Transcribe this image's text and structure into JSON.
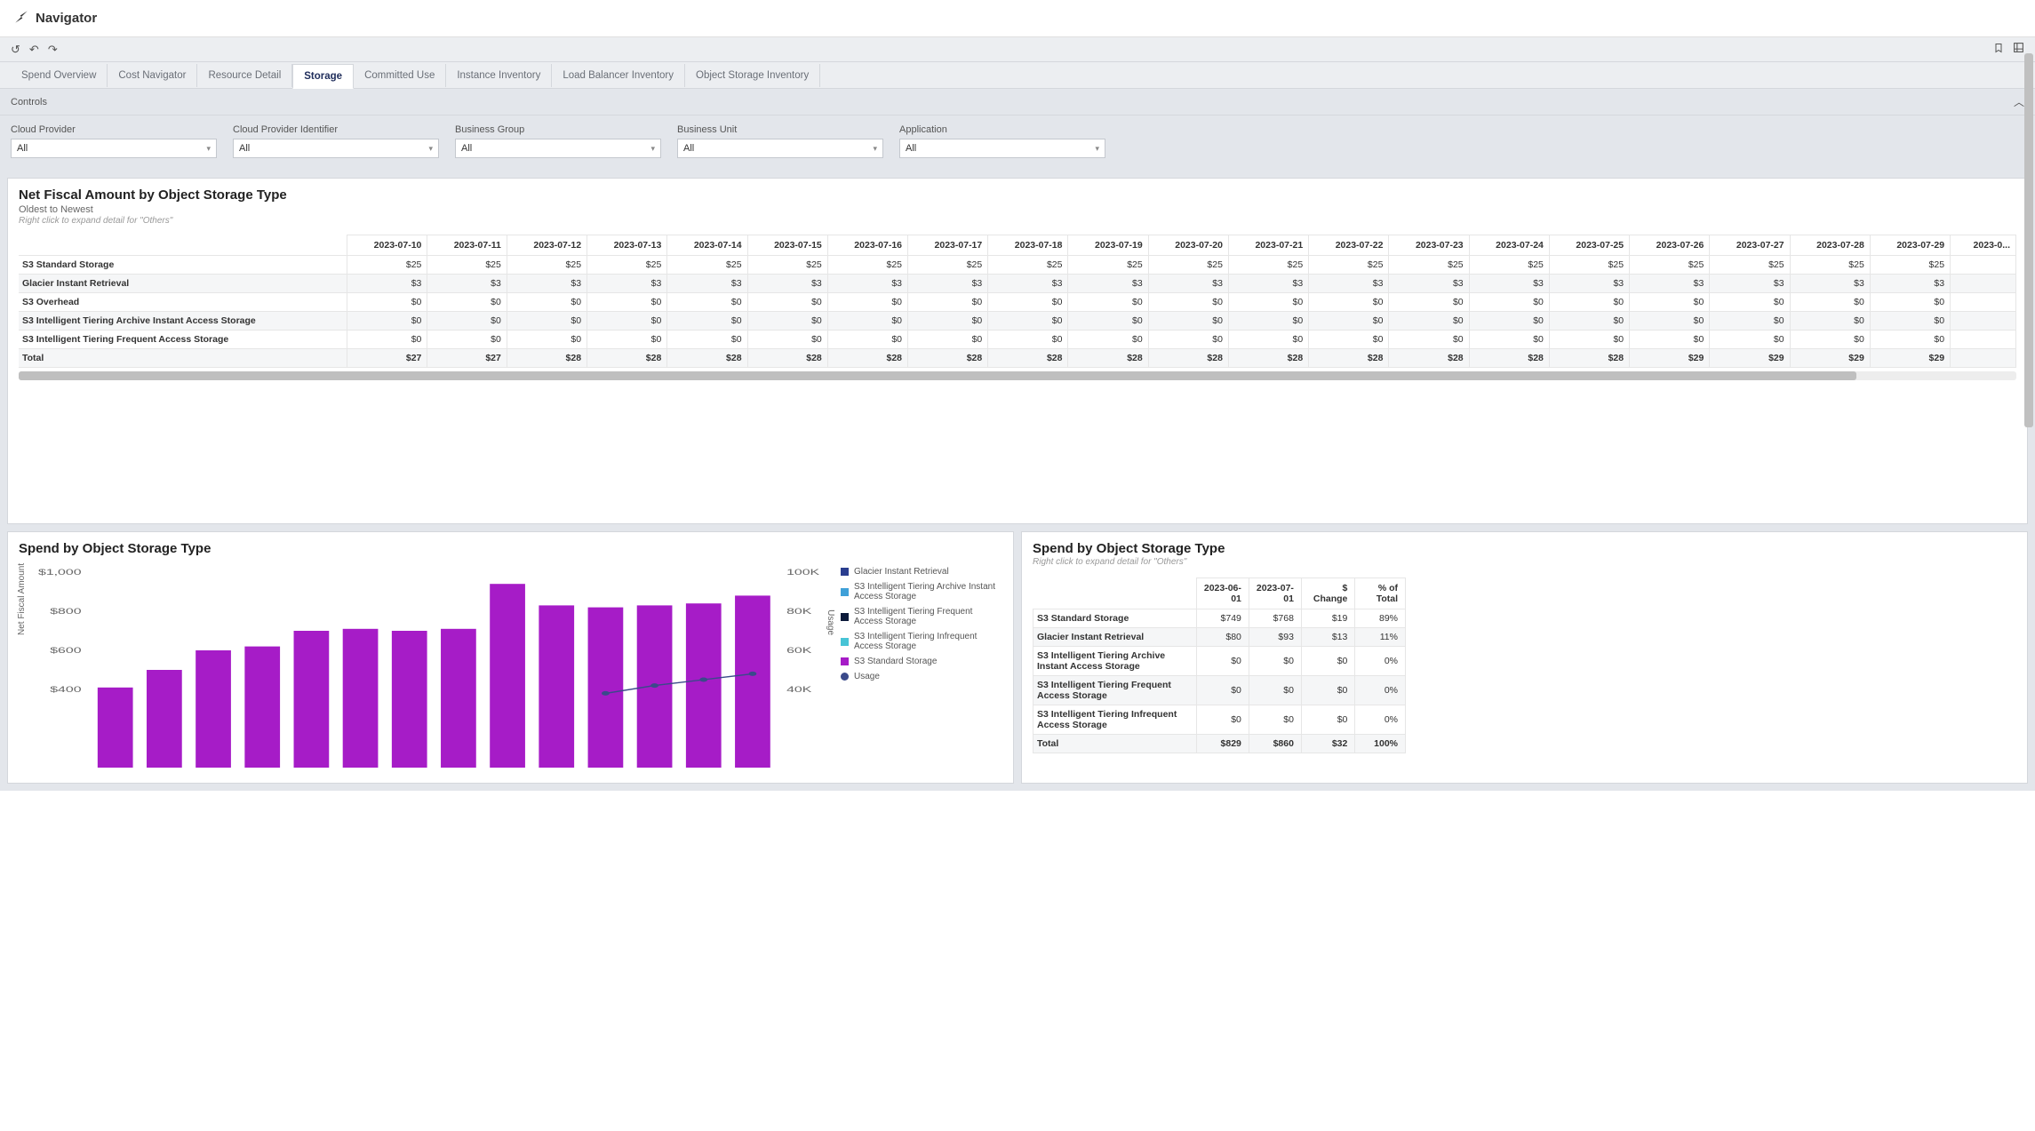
{
  "header": {
    "title": "Navigator"
  },
  "toolbar": {
    "icons_left": [
      "undo",
      "redo-left",
      "redo-right"
    ],
    "icons_right": [
      "bookmark",
      "export"
    ]
  },
  "tabs": {
    "items": [
      {
        "label": "Spend Overview",
        "active": false
      },
      {
        "label": "Cost Navigator",
        "active": false
      },
      {
        "label": "Resource Detail",
        "active": false
      },
      {
        "label": "Storage",
        "active": true
      },
      {
        "label": "Committed Use",
        "active": false
      },
      {
        "label": "Instance Inventory",
        "active": false
      },
      {
        "label": "Load Balancer Inventory",
        "active": false
      },
      {
        "label": "Object Storage Inventory",
        "active": false
      }
    ]
  },
  "controls": {
    "label": "Controls"
  },
  "filters": [
    {
      "label": "Cloud Provider",
      "value": "All"
    },
    {
      "label": "Cloud Provider Identifier",
      "value": "All"
    },
    {
      "label": "Business Group",
      "value": "All"
    },
    {
      "label": "Business Unit",
      "value": "All"
    },
    {
      "label": "Application",
      "value": "All"
    }
  ],
  "panel1": {
    "title": "Net Fiscal Amount by Object Storage Type",
    "subtitle": "Oldest to Newest",
    "hint": "Right click to expand detail for \"Others\"",
    "columns": [
      "2023-07-10",
      "2023-07-11",
      "2023-07-12",
      "2023-07-13",
      "2023-07-14",
      "2023-07-15",
      "2023-07-16",
      "2023-07-17",
      "2023-07-18",
      "2023-07-19",
      "2023-07-20",
      "2023-07-21",
      "2023-07-22",
      "2023-07-23",
      "2023-07-24",
      "2023-07-25",
      "2023-07-26",
      "2023-07-27",
      "2023-07-28",
      "2023-07-29",
      "2023-0..."
    ],
    "rows": [
      {
        "label": "S3 Standard Storage",
        "values": [
          "$25",
          "$25",
          "$25",
          "$25",
          "$25",
          "$25",
          "$25",
          "$25",
          "$25",
          "$25",
          "$25",
          "$25",
          "$25",
          "$25",
          "$25",
          "$25",
          "$25",
          "$25",
          "$25",
          "$25",
          ""
        ]
      },
      {
        "label": "Glacier Instant Retrieval",
        "values": [
          "$3",
          "$3",
          "$3",
          "$3",
          "$3",
          "$3",
          "$3",
          "$3",
          "$3",
          "$3",
          "$3",
          "$3",
          "$3",
          "$3",
          "$3",
          "$3",
          "$3",
          "$3",
          "$3",
          "$3",
          ""
        ]
      },
      {
        "label": "S3 Overhead",
        "values": [
          "$0",
          "$0",
          "$0",
          "$0",
          "$0",
          "$0",
          "$0",
          "$0",
          "$0",
          "$0",
          "$0",
          "$0",
          "$0",
          "$0",
          "$0",
          "$0",
          "$0",
          "$0",
          "$0",
          "$0",
          ""
        ]
      },
      {
        "label": "S3 Intelligent Tiering Archive Instant Access Storage",
        "values": [
          "$0",
          "$0",
          "$0",
          "$0",
          "$0",
          "$0",
          "$0",
          "$0",
          "$0",
          "$0",
          "$0",
          "$0",
          "$0",
          "$0",
          "$0",
          "$0",
          "$0",
          "$0",
          "$0",
          "$0",
          ""
        ]
      },
      {
        "label": "S3 Intelligent Tiering Frequent Access Storage",
        "values": [
          "$0",
          "$0",
          "$0",
          "$0",
          "$0",
          "$0",
          "$0",
          "$0",
          "$0",
          "$0",
          "$0",
          "$0",
          "$0",
          "$0",
          "$0",
          "$0",
          "$0",
          "$0",
          "$0",
          "$0",
          ""
        ]
      },
      {
        "label": "Total",
        "values": [
          "$27",
          "$27",
          "$28",
          "$28",
          "$28",
          "$28",
          "$28",
          "$28",
          "$28",
          "$28",
          "$28",
          "$28",
          "$28",
          "$28",
          "$28",
          "$28",
          "$29",
          "$29",
          "$29",
          "$29",
          ""
        ],
        "total": true
      }
    ]
  },
  "panel2": {
    "title": "Spend by Object Storage Type",
    "chart": {
      "type": "bar+line",
      "y1_label": "Net Fiscal Amount",
      "y2_label": "Usage",
      "y1_max": 1000,
      "y1_ticks": [
        "$1,000",
        "$800",
        "$600",
        "$400"
      ],
      "y2_max": 100000,
      "y2_ticks": [
        "100K",
        "80K",
        "60K",
        "40K"
      ],
      "bar_color": "#a61cc7",
      "bar_values": [
        410,
        500,
        600,
        620,
        700,
        710,
        700,
        710,
        940,
        830,
        820,
        830,
        840,
        880
      ],
      "line_color": "#3a4a8a",
      "line_values": [
        null,
        null,
        null,
        null,
        null,
        null,
        null,
        null,
        null,
        null,
        38,
        42,
        45,
        48
      ],
      "legend": [
        {
          "label": "Glacier Instant Retrieval",
          "color": "#2a3e8f",
          "shape": "square"
        },
        {
          "label": "S3 Intelligent Tiering Archive Instant Access Storage",
          "color": "#3fa0d8",
          "shape": "square"
        },
        {
          "label": "S3 Intelligent Tiering Frequent Access Storage",
          "color": "#0b1a3a",
          "shape": "square"
        },
        {
          "label": "S3 Intelligent Tiering Infrequent Access Storage",
          "color": "#47c4d6",
          "shape": "square"
        },
        {
          "label": "S3 Standard Storage",
          "color": "#a61cc7",
          "shape": "square"
        },
        {
          "label": "Usage",
          "color": "#3a4a8a",
          "shape": "circle"
        }
      ]
    }
  },
  "panel3": {
    "title": "Spend by Object Storage Type",
    "hint": "Right click to expand detail for \"Others\"",
    "columns": [
      "2023-06-01",
      "2023-07-01",
      "$ Change",
      "% of Total"
    ],
    "rows": [
      {
        "label": "S3 Standard Storage",
        "values": [
          "$749",
          "$768",
          "$19",
          "89%"
        ]
      },
      {
        "label": "Glacier Instant Retrieval",
        "values": [
          "$80",
          "$93",
          "$13",
          "11%"
        ]
      },
      {
        "label": "S3 Intelligent Tiering Archive Instant Access Storage",
        "values": [
          "$0",
          "$0",
          "$0",
          "0%"
        ]
      },
      {
        "label": "S3 Intelligent Tiering Frequent Access Storage",
        "values": [
          "$0",
          "$0",
          "$0",
          "0%"
        ]
      },
      {
        "label": "S3 Intelligent Tiering Infrequent Access Storage",
        "values": [
          "$0",
          "$0",
          "$0",
          "0%"
        ]
      },
      {
        "label": "Total",
        "values": [
          "$829",
          "$860",
          "$32",
          "100%"
        ],
        "total": true
      }
    ]
  }
}
